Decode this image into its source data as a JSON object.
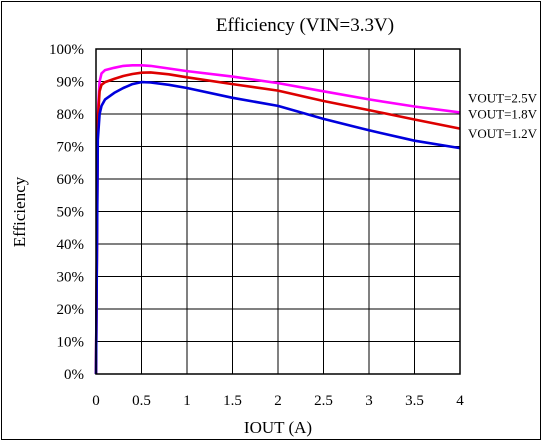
{
  "chart_data": {
    "type": "line",
    "title": "Efficiency (VIN=3.3V)",
    "xlabel": "IOUT (A)",
    "ylabel": "Efficiency",
    "xlim": [
      0,
      4
    ],
    "ylim": [
      0,
      100
    ],
    "grid": true,
    "x_ticks": [
      "0",
      "0.5",
      "1",
      "1.5",
      "2",
      "2.5",
      "3",
      "3.5",
      "4"
    ],
    "y_ticks": [
      "0%",
      "10%",
      "20%",
      "30%",
      "40%",
      "50%",
      "60%",
      "70%",
      "80%",
      "90%",
      "100%"
    ],
    "series": [
      {
        "name": "VOUT=2.5V",
        "color": "#ff00ff",
        "points": [
          [
            0,
            0
          ],
          [
            0.02,
            80
          ],
          [
            0.04,
            90
          ],
          [
            0.06,
            92.5
          ],
          [
            0.1,
            93.5
          ],
          [
            0.2,
            94.2
          ],
          [
            0.3,
            94.8
          ],
          [
            0.4,
            95
          ],
          [
            0.5,
            95
          ],
          [
            0.6,
            94.8
          ],
          [
            0.8,
            94
          ],
          [
            1.0,
            93.2
          ],
          [
            1.5,
            91.5
          ],
          [
            2.0,
            89.5
          ],
          [
            2.5,
            87
          ],
          [
            3.0,
            84.5
          ],
          [
            3.5,
            82.3
          ],
          [
            4.0,
            80.5
          ]
        ]
      },
      {
        "name": "VOUT=1.8V",
        "color": "#dd0000",
        "points": [
          [
            0,
            0
          ],
          [
            0.02,
            78
          ],
          [
            0.04,
            87
          ],
          [
            0.06,
            89
          ],
          [
            0.1,
            89.8
          ],
          [
            0.2,
            90.8
          ],
          [
            0.3,
            91.7
          ],
          [
            0.4,
            92.3
          ],
          [
            0.5,
            92.7
          ],
          [
            0.6,
            92.8
          ],
          [
            0.8,
            92.2
          ],
          [
            1.0,
            91.3
          ],
          [
            1.5,
            89.2
          ],
          [
            2.0,
            87.2
          ],
          [
            2.5,
            84
          ],
          [
            3.0,
            81.2
          ],
          [
            3.5,
            78.3
          ],
          [
            4.0,
            75.5
          ]
        ]
      },
      {
        "name": "VOUT=1.2V",
        "color": "#0000dd",
        "points": [
          [
            0,
            0
          ],
          [
            0.02,
            72
          ],
          [
            0.04,
            80
          ],
          [
            0.06,
            82.5
          ],
          [
            0.1,
            84.5
          ],
          [
            0.2,
            86.5
          ],
          [
            0.3,
            88
          ],
          [
            0.4,
            89.2
          ],
          [
            0.5,
            89.8
          ],
          [
            0.6,
            89.7
          ],
          [
            0.8,
            89
          ],
          [
            1.0,
            88
          ],
          [
            1.5,
            85
          ],
          [
            2.0,
            82.5
          ],
          [
            2.5,
            78.5
          ],
          [
            3.0,
            75
          ],
          [
            3.5,
            71.8
          ],
          [
            4.0,
            69.5
          ]
        ]
      }
    ]
  }
}
